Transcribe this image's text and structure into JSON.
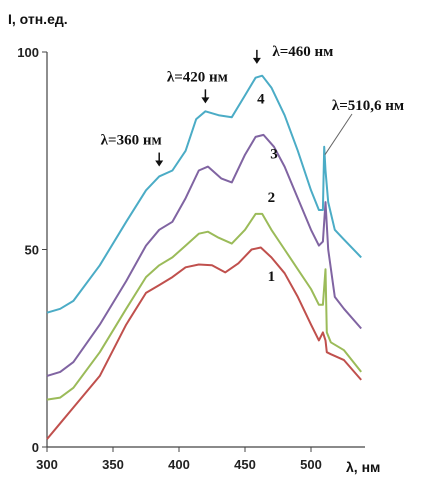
{
  "chart_data": {
    "type": "line",
    "ylabel": "I, отн.ед.",
    "xlabel": "λ, нм",
    "xlim": [
      300,
      540
    ],
    "ylim": [
      0,
      100
    ],
    "x_ticks": [
      300,
      350,
      400,
      450,
      500
    ],
    "y_ticks": [
      0,
      50,
      100
    ],
    "grid": false,
    "legend": "none",
    "series": [
      {
        "label": "1",
        "color": "#c0504d",
        "points": [
          [
            300,
            2
          ],
          [
            310,
            6
          ],
          [
            320,
            10
          ],
          [
            340,
            18
          ],
          [
            360,
            31
          ],
          [
            375,
            39
          ],
          [
            385,
            41
          ],
          [
            395,
            43
          ],
          [
            405,
            45.5
          ],
          [
            415,
            46.2
          ],
          [
            425,
            46
          ],
          [
            435,
            44.2
          ],
          [
            445,
            46.5
          ],
          [
            455,
            50
          ],
          [
            462,
            50.5
          ],
          [
            470,
            48
          ],
          [
            480,
            44
          ],
          [
            490,
            38
          ],
          [
            500,
            31
          ],
          [
            506,
            27
          ],
          [
            509,
            29
          ],
          [
            511,
            27
          ],
          [
            512,
            24
          ],
          [
            515,
            23.5
          ],
          [
            525,
            22
          ],
          [
            538,
            17
          ]
        ]
      },
      {
        "label": "2",
        "color": "#9bbb59",
        "points": [
          [
            300,
            12
          ],
          [
            310,
            12.5
          ],
          [
            320,
            15
          ],
          [
            340,
            24
          ],
          [
            360,
            35
          ],
          [
            375,
            43
          ],
          [
            385,
            46
          ],
          [
            395,
            48
          ],
          [
            405,
            51
          ],
          [
            415,
            54
          ],
          [
            422,
            54.5
          ],
          [
            430,
            53
          ],
          [
            440,
            51.5
          ],
          [
            450,
            55
          ],
          [
            458,
            59
          ],
          [
            463,
            59
          ],
          [
            470,
            55
          ],
          [
            480,
            50
          ],
          [
            490,
            45
          ],
          [
            500,
            40
          ],
          [
            506,
            36
          ],
          [
            509,
            36
          ],
          [
            511,
            45
          ],
          [
            512,
            29
          ],
          [
            515,
            26.5
          ],
          [
            525,
            24.5
          ],
          [
            538,
            19
          ]
        ]
      },
      {
        "label": "3",
        "color": "#8064a2",
        "points": [
          [
            300,
            18
          ],
          [
            310,
            19
          ],
          [
            320,
            21.5
          ],
          [
            340,
            31
          ],
          [
            360,
            42
          ],
          [
            375,
            51
          ],
          [
            385,
            55
          ],
          [
            395,
            57
          ],
          [
            405,
            63
          ],
          [
            415,
            70
          ],
          [
            422,
            71
          ],
          [
            432,
            68
          ],
          [
            440,
            67
          ],
          [
            450,
            74
          ],
          [
            458,
            78.5
          ],
          [
            464,
            79
          ],
          [
            472,
            76
          ],
          [
            480,
            71
          ],
          [
            490,
            63
          ],
          [
            500,
            55
          ],
          [
            506,
            51
          ],
          [
            509,
            52
          ],
          [
            511,
            62
          ],
          [
            513,
            50
          ],
          [
            518,
            38
          ],
          [
            525,
            35
          ],
          [
            538,
            30
          ]
        ]
      },
      {
        "label": "4",
        "color": "#4bacc6",
        "points": [
          [
            300,
            34
          ],
          [
            310,
            35
          ],
          [
            320,
            37
          ],
          [
            340,
            46
          ],
          [
            360,
            57
          ],
          [
            375,
            65
          ],
          [
            385,
            68.5
          ],
          [
            395,
            70
          ],
          [
            405,
            75
          ],
          [
            413,
            83
          ],
          [
            420,
            85
          ],
          [
            430,
            84
          ],
          [
            440,
            83.5
          ],
          [
            450,
            89
          ],
          [
            458,
            93.5
          ],
          [
            463,
            94
          ],
          [
            470,
            91
          ],
          [
            480,
            84
          ],
          [
            490,
            75
          ],
          [
            500,
            65
          ],
          [
            506,
            60
          ],
          [
            509,
            60
          ],
          [
            510,
            76
          ],
          [
            511,
            70
          ],
          [
            513,
            62
          ],
          [
            518,
            55
          ],
          [
            525,
            52.5
          ],
          [
            538,
            48
          ]
        ]
      }
    ],
    "annotations": [
      {
        "text": "λ=360 нм",
        "arrow_x": 385,
        "arrow_y": 71
      },
      {
        "text": "λ=420 нм",
        "arrow_x": 420,
        "arrow_y": 87
      },
      {
        "text": "λ=460 нм",
        "arrow_x": 459,
        "arrow_y": 97
      },
      {
        "text": "λ=510,6 нм",
        "line_to_x": 510.6,
        "line_to_y": 74
      }
    ]
  }
}
